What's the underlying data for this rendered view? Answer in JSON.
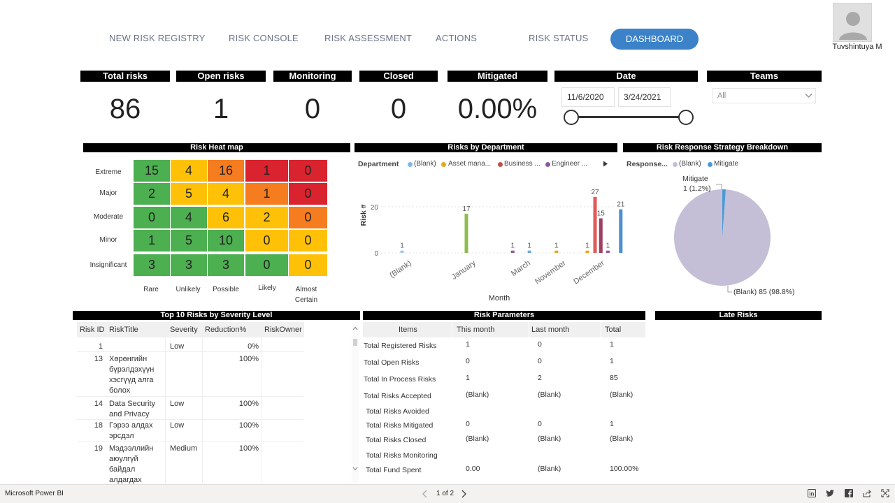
{
  "nav": {
    "items": [
      "NEW RISK REGISTRY",
      "RISK CONSOLE",
      "RISK ASSESSMENT",
      "ACTIONS",
      "RISK STATUS"
    ],
    "active": "DASHBOARD"
  },
  "user": {
    "name": "Tuvshintuya M"
  },
  "kpis": [
    {
      "label": "Total risks",
      "value": "86"
    },
    {
      "label": "Open risks",
      "value": "1"
    },
    {
      "label": "Monitoring",
      "value": "0"
    },
    {
      "label": "Closed",
      "value": "0"
    },
    {
      "label": "Mitigated",
      "value": "0.00%"
    }
  ],
  "date_slicer": {
    "label": "Date",
    "start": "11/6/2020",
    "end": "3/24/2021"
  },
  "teams_slicer": {
    "label": "Teams",
    "value": "All"
  },
  "heatmap": {
    "title": "Risk Heat map",
    "rows": [
      "Extreme",
      "Major",
      "Moderate",
      "Minor",
      "Insignificant"
    ],
    "cols": [
      "Rare",
      "Unlikely",
      "Possible",
      "Likely",
      "Almost Certain"
    ],
    "values": [
      [
        15,
        4,
        16,
        1,
        0
      ],
      [
        2,
        5,
        4,
        1,
        0
      ],
      [
        0,
        4,
        6,
        2,
        0
      ],
      [
        1,
        5,
        10,
        0,
        0
      ],
      [
        3,
        3,
        3,
        0,
        0
      ]
    ],
    "colors": [
      [
        "#4caf50",
        "#ffc107",
        "#f57c1f",
        "#d9232e",
        "#d9232e"
      ],
      [
        "#4caf50",
        "#ffc107",
        "#ffc107",
        "#f57c1f",
        "#d9232e"
      ],
      [
        "#4caf50",
        "#4caf50",
        "#ffc107",
        "#ffc107",
        "#f57c1f"
      ],
      [
        "#4caf50",
        "#4caf50",
        "#4caf50",
        "#ffc107",
        "#ffc107"
      ],
      [
        "#4caf50",
        "#4caf50",
        "#4caf50",
        "#4caf50",
        "#ffc107"
      ]
    ]
  },
  "chart_data": [
    {
      "type": "bar",
      "title": "Risks by Department",
      "legend_title": "Department",
      "legend": [
        {
          "name": "(Blank)",
          "color": "#7fb8e6"
        },
        {
          "name": "Asset mana...",
          "color": "#e6a817"
        },
        {
          "name": "Business ...",
          "color": "#c0504d"
        },
        {
          "name": "Engineer ...",
          "color": "#8e5a9e"
        }
      ],
      "xlabel": "Month",
      "ylabel": "Risk #",
      "yticks": [
        "0",
        "20"
      ],
      "ylim": [
        0,
        30
      ],
      "categories": [
        "(Blank)",
        "January",
        "March",
        "November",
        "December"
      ],
      "bars": [
        {
          "x": 0.0,
          "value": 1,
          "label": "1",
          "color": "#9cc8ea"
        },
        {
          "x": 1.0,
          "value": 17,
          "label": "17",
          "color": "#8fbc4f"
        },
        {
          "x": 1.72,
          "value": 1,
          "label": "1",
          "color": "#8e5a9e"
        },
        {
          "x": 1.98,
          "value": 1,
          "label": "1",
          "color": "#6aaad8"
        },
        {
          "x": 2.4,
          "value": 1,
          "label": "1",
          "color": "#e6a817"
        },
        {
          "x": 2.88,
          "value": 1,
          "label": "1",
          "color": "#e6a817"
        },
        {
          "x": 3.0,
          "value": 27,
          "label": "27",
          "color": "#e05a5a"
        },
        {
          "x": 3.09,
          "value": 15,
          "label": "15",
          "color": "#9e3f5f"
        },
        {
          "x": 3.2,
          "value": 1,
          "label": "1",
          "color": "#8e5a9e"
        },
        {
          "x": 3.4,
          "value": 21,
          "label": "21",
          "color": "#4c8fcf"
        }
      ]
    },
    {
      "type": "pie",
      "title": "Risk Response Strategy Breakdown",
      "legend_title": "Response...",
      "slices": [
        {
          "name": "(Blank)",
          "value": 85,
          "percent": "98.8%",
          "label": "(Blank) 85 (98.8%)",
          "color": "#c4bfd6"
        },
        {
          "name": "Mitigate",
          "value": 1,
          "percent": "1.2%",
          "label": "Mitigate 1 (1.2%)",
          "color": "#4a9ad8"
        }
      ]
    }
  ],
  "top10": {
    "title": "Top 10 Risks by Severity Level",
    "columns": [
      "Risk ID",
      "RiskTitle",
      "Severity",
      "Reduction%",
      "RiskOwner"
    ],
    "rows": [
      {
        "id": "1",
        "title": "",
        "severity": "Low",
        "reduction": "0%",
        "owner": ""
      },
      {
        "id": "13",
        "title": "Хөрөнгийн бүрэлдэхүүн хэсгүүд алга болох",
        "severity": "",
        "reduction": "100%",
        "owner": ""
      },
      {
        "id": "14",
        "title": "Data Security and Privacy",
        "severity": "Low",
        "reduction": "100%",
        "owner": ""
      },
      {
        "id": "18",
        "title": "Гэрээ алдах эрсдэл",
        "severity": "Low",
        "reduction": "100%",
        "owner": ""
      },
      {
        "id": "19",
        "title": "Мэдээллийн аюулгүй байдал алдагдах",
        "severity": "Medium",
        "reduction": "100%",
        "owner": ""
      }
    ]
  },
  "risk_params": {
    "title": "Risk Parameters",
    "columns": [
      "Items",
      "This month",
      "Last month",
      "Total"
    ],
    "rows": [
      {
        "item": "Total Registered Risks",
        "this": "1",
        "last": "0",
        "total": "1"
      },
      {
        "item": "Total Open Risks",
        "this": "0",
        "last": "0",
        "total": "1"
      },
      {
        "item": "Total In Process Risks",
        "this": "1",
        "last": "2",
        "total": "85"
      },
      {
        "item": "Total Risks Accepted",
        "this": "(Blank)",
        "last": "(Blank)",
        "total": "(Blank)"
      },
      {
        "item": "Total Risks Avoided",
        "this": "",
        "last": "",
        "total": ""
      },
      {
        "item": "Total Risks Mitigated",
        "this": "0",
        "last": "0",
        "total": "1"
      },
      {
        "item": "Total Risks Closed",
        "this": "(Blank)",
        "last": "(Blank)",
        "total": "(Blank)"
      },
      {
        "item": "Total Risks Monitoring",
        "this": "",
        "last": "",
        "total": ""
      },
      {
        "item": "Total Fund Spent",
        "this": "0.00",
        "last": "(Blank)",
        "total": "100.00%"
      }
    ]
  },
  "late_risks": {
    "title": "Late Risks"
  },
  "footer": {
    "brand": "Microsoft Power BI",
    "page": "1 of 2",
    "share_icons": [
      "linkedin-icon",
      "twitter-icon",
      "facebook-icon",
      "share-icon",
      "fullscreen-icon"
    ]
  }
}
